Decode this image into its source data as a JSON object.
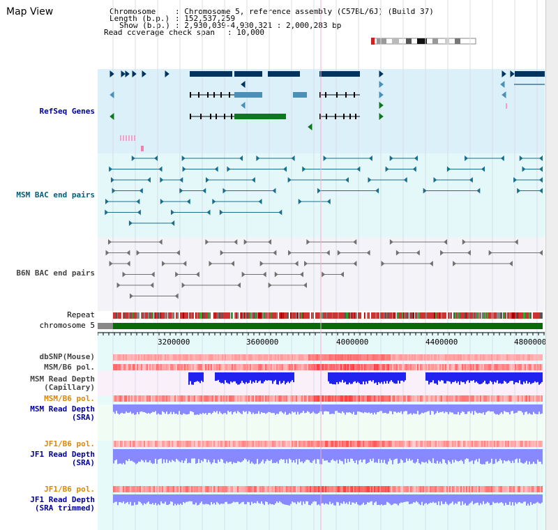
{
  "title": "Map View",
  "info": {
    "chromosome_label": "Chromosome",
    "chromosome_value": ": Chromosome 5, reference assembly (C57BL/6J) (Build 37)",
    "length_label": "Length (b.p.)",
    "length_value": ": 152,537,259",
    "show_label": "Show (b.p.)",
    "show_value": ": 2,930,039-4,930,321 : 2,000,283 bp",
    "coverage_label": "Read coverage check span",
    "coverage_value": ": 10,000"
  },
  "tracks": {
    "refseq": "RefSeq Genes",
    "msm_bac": "MSM BAC end pairs",
    "b6n_bac": "B6N BAC end pairs",
    "repeat": "Repeat",
    "chromosome": "chromosome 5",
    "dbsnp": "dbSNP(Mouse)",
    "msm_b6_pol": "MSM/B6 pol.",
    "msm_depth_cap_1": "MSM Read Depth",
    "msm_depth_cap_2": "(Capillary)",
    "msm_b6_pol_2": "MSM/B6 pol.",
    "msm_depth_sra_1": "MSM Read Depth",
    "msm_depth_sra_2": "(SRA)",
    "jf1_b6_pol": "JF1/B6 pol.",
    "jf1_depth_sra_1": "JF1 Read Depth",
    "jf1_depth_sra_2": "(SRA)",
    "jf1_b6_pol_2": "JF1/B6 pol.",
    "jf1_depth_trim_1": "JF1 Read Depth",
    "jf1_depth_trim_2": "(SRA trimmed)"
  },
  "axis_ticks": [
    "3200000",
    "3600000",
    "4000000",
    "4400000",
    "4800000"
  ],
  "colors": {
    "refseq_bg": "#dcf0fa",
    "msm_bac_bg": "#e4f8fa",
    "b6n_bac_bg": "#f4f4f8",
    "gene_dark": "#00335e",
    "gene_mid": "#4a90b8",
    "gene_green": "#0a7a1a",
    "bac_teal": "#1a6e8a",
    "bac_gray": "#707070",
    "chromosome_bar": "#0a6a0a",
    "depth_blue": "#2222ee",
    "depth_light": "#8888ff"
  },
  "ui": {
    "scrollbar": "vertical-scrollbar"
  }
}
